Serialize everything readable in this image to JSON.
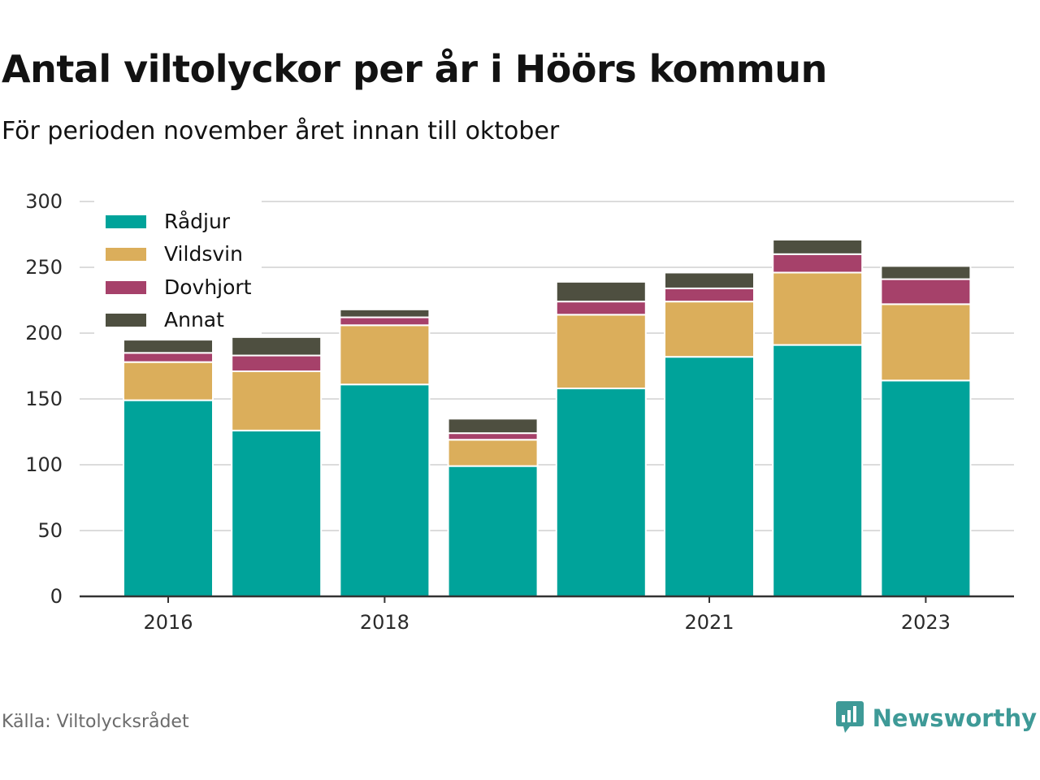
{
  "title": "Antal viltolyckor per år i Höörs kommun",
  "subtitle": "För perioden november året innan till oktober",
  "source": "Källa: Viltolycksrådet",
  "brand": {
    "name": "Newsworthy",
    "icon": "newsworthy-logo-icon",
    "color": "#3e9a97"
  },
  "chart_data": {
    "type": "bar",
    "stacked": true,
    "categories": [
      "2016",
      "2017",
      "2018",
      "2019",
      "2020",
      "2021",
      "2022",
      "2023"
    ],
    "x_tick_labels": [
      "2016",
      "",
      "2018",
      "",
      "",
      "2021",
      "",
      "2023"
    ],
    "series": [
      {
        "name": "Rådjur",
        "color": "#00a39a",
        "values": [
          149,
          126,
          161,
          99,
          158,
          182,
          191,
          164
        ]
      },
      {
        "name": "Vildsvin",
        "color": "#dbae5b",
        "values": [
          29,
          45,
          45,
          20,
          56,
          42,
          55,
          58
        ]
      },
      {
        "name": "Dovhjort",
        "color": "#a6416a",
        "values": [
          7,
          12,
          6,
          5,
          10,
          10,
          14,
          19
        ]
      },
      {
        "name": "Annat",
        "color": "#4e4f40",
        "values": [
          10,
          14,
          6,
          11,
          15,
          12,
          11,
          10
        ]
      }
    ],
    "y_ticks": [
      0,
      50,
      100,
      150,
      200,
      250,
      300
    ],
    "ylim": [
      0,
      300
    ],
    "grid": true,
    "legend": "top-left"
  }
}
